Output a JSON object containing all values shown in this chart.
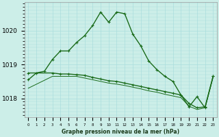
{
  "xlabel": "Graphe pression niveau de la mer (hPa)",
  "bg_color": "#cceee8",
  "grid_color": "#aadddd",
  "line_color": "#1a6b1a",
  "hours": [
    0,
    1,
    2,
    3,
    4,
    5,
    6,
    7,
    8,
    9,
    10,
    11,
    12,
    13,
    14,
    15,
    16,
    17,
    18,
    19,
    20,
    21,
    22,
    23
  ],
  "line1_x": [
    0,
    1,
    2,
    3,
    4,
    5,
    6,
    7,
    8,
    9,
    10,
    11,
    12,
    13,
    14,
    15,
    16,
    17,
    18,
    19,
    20,
    21,
    22,
    23
  ],
  "line1_y": [
    1018.55,
    1018.75,
    1018.8,
    1019.15,
    1019.4,
    1019.4,
    1019.65,
    1019.85,
    1020.15,
    1020.55,
    1020.25,
    1020.55,
    1020.5,
    1019.9,
    1019.55,
    1019.1,
    1018.85,
    1018.65,
    1018.5,
    1018.1,
    1017.75,
    1018.05,
    1017.72,
    1018.65
  ],
  "line2_x": [
    0,
    3,
    4,
    5,
    6,
    7,
    8,
    9,
    10,
    11,
    12,
    13,
    14,
    15,
    16,
    17,
    18,
    19,
    20,
    21,
    22,
    23
  ],
  "line2_y": [
    1018.75,
    1018.75,
    1018.72,
    1018.72,
    1018.7,
    1018.68,
    1018.62,
    1018.57,
    1018.52,
    1018.5,
    1018.45,
    1018.4,
    1018.35,
    1018.3,
    1018.25,
    1018.2,
    1018.15,
    1018.1,
    1017.85,
    1017.72,
    1017.75,
    1018.65
  ],
  "line3_x": [
    0,
    3,
    4,
    5,
    6,
    7,
    8,
    9,
    10,
    11,
    12,
    13,
    14,
    15,
    16,
    17,
    18,
    19,
    20,
    21,
    22,
    23
  ],
  "line3_y": [
    1018.3,
    1018.65,
    1018.65,
    1018.65,
    1018.65,
    1018.6,
    1018.55,
    1018.5,
    1018.45,
    1018.42,
    1018.38,
    1018.33,
    1018.28,
    1018.22,
    1018.18,
    1018.12,
    1018.07,
    1018.02,
    1017.77,
    1017.67,
    1017.72,
    1018.62
  ],
  "ylim": [
    1017.45,
    1020.85
  ],
  "yticks": [
    1018,
    1019,
    1020
  ],
  "xlim": [
    -0.5,
    23.5
  ],
  "figsize": [
    3.2,
    2.0
  ],
  "dpi": 100
}
